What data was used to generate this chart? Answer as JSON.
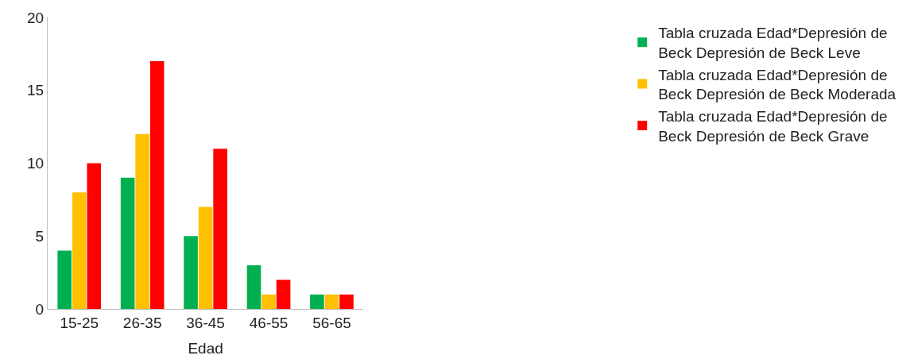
{
  "chart_data": {
    "type": "bar",
    "xlabel": "Edad",
    "categories": [
      "15-25",
      "26-35",
      "36-45",
      "46-55",
      "56-65"
    ],
    "series": [
      {
        "name": "Tabla cruzada Edad*Depresión de Beck Depresión de Beck Leve",
        "color": "#00b050",
        "values": [
          4,
          9,
          5,
          3,
          1
        ]
      },
      {
        "name": "Tabla cruzada Edad*Depresión de Beck Depresión de Beck Moderada",
        "color": "#ffc000",
        "values": [
          8,
          12,
          7,
          1,
          1
        ]
      },
      {
        "name": "Tabla cruzada Edad*Depresión de Beck Depresión de Beck Grave",
        "color": "#ff0000",
        "values": [
          10,
          17,
          11,
          2,
          1
        ]
      }
    ],
    "ylim": [
      0,
      20
    ],
    "yticks": [
      0,
      5,
      10,
      15,
      20
    ],
    "legend": "right"
  }
}
